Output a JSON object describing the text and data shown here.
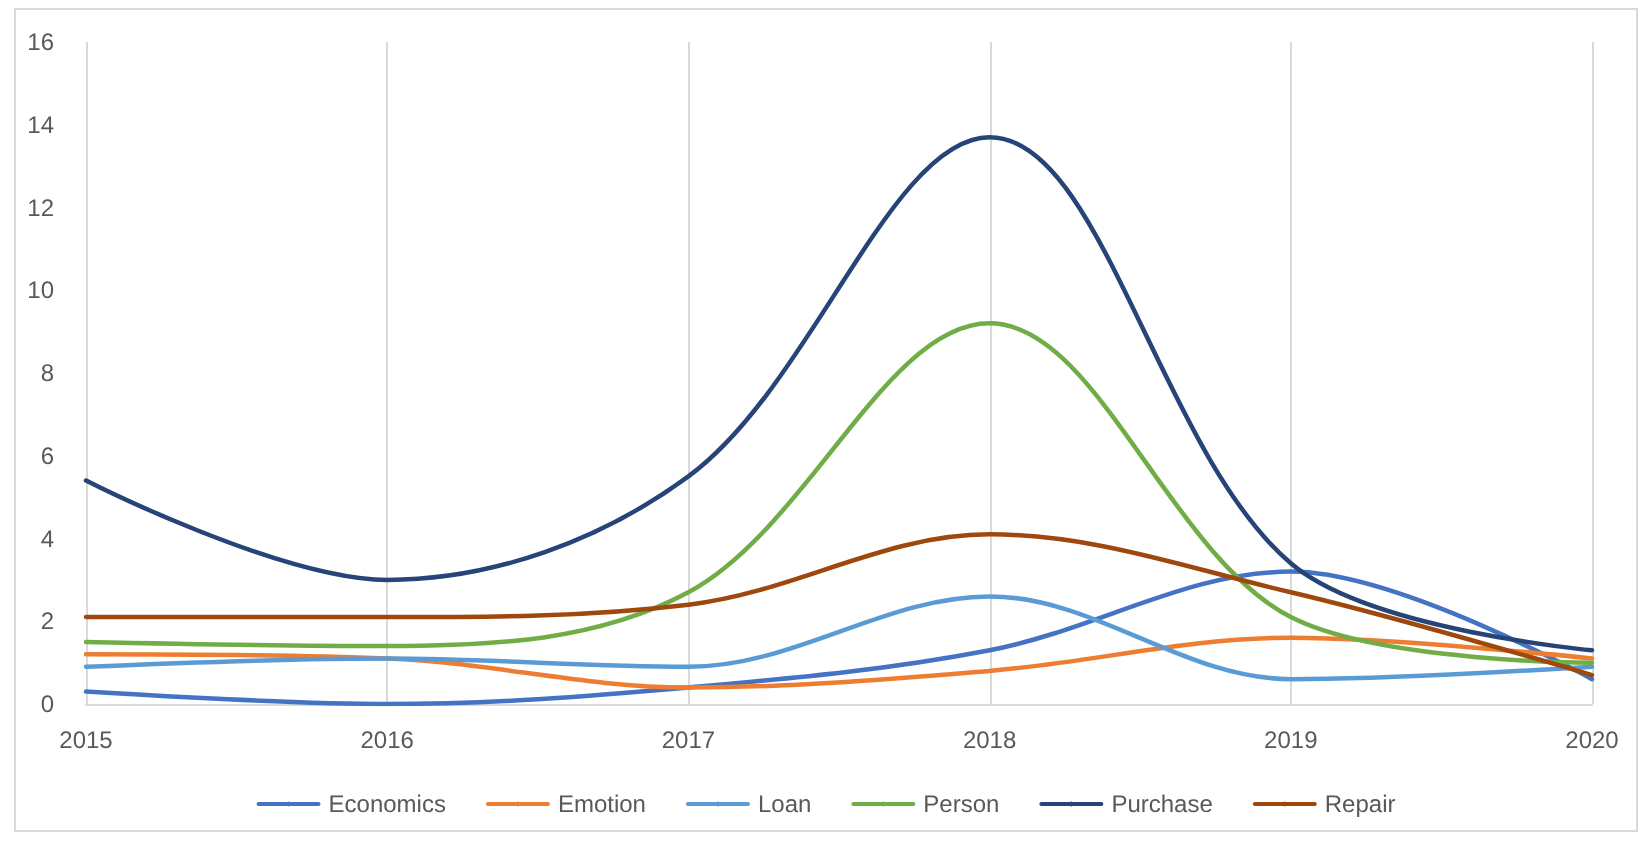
{
  "chart_data": {
    "type": "line",
    "x": [
      2015,
      2016,
      2017,
      2018,
      2019,
      2020
    ],
    "series": [
      {
        "name": "Economics",
        "color": "#4472c4",
        "values": [
          0.3,
          0.0,
          0.4,
          1.3,
          3.2,
          0.6
        ]
      },
      {
        "name": "Emotion",
        "color": "#ed7d31",
        "values": [
          1.2,
          1.1,
          0.4,
          0.8,
          1.6,
          1.1
        ]
      },
      {
        "name": "Loan",
        "color": "#5b9bd5",
        "values": [
          0.9,
          1.1,
          0.9,
          2.6,
          0.6,
          0.9
        ]
      },
      {
        "name": "Person",
        "color": "#70ad47",
        "values": [
          1.5,
          1.4,
          2.7,
          9.2,
          2.1,
          1.0
        ]
      },
      {
        "name": "Purchase",
        "color": "#264478",
        "values": [
          5.4,
          3.0,
          5.5,
          13.7,
          3.4,
          1.3
        ]
      },
      {
        "name": "Repair",
        "color": "#9e480e",
        "values": [
          2.1,
          2.1,
          2.4,
          4.1,
          2.7,
          0.7
        ]
      }
    ],
    "xlim": [
      2015,
      2020
    ],
    "xticks": [
      2015,
      2016,
      2017,
      2018,
      2019,
      2020
    ],
    "ylim": [
      0,
      16
    ],
    "yticks": [
      0,
      2,
      4,
      6,
      8,
      10,
      12,
      14,
      16
    ],
    "grid": "x",
    "legend": "bottom",
    "marker": "none",
    "line_style": "solid"
  }
}
